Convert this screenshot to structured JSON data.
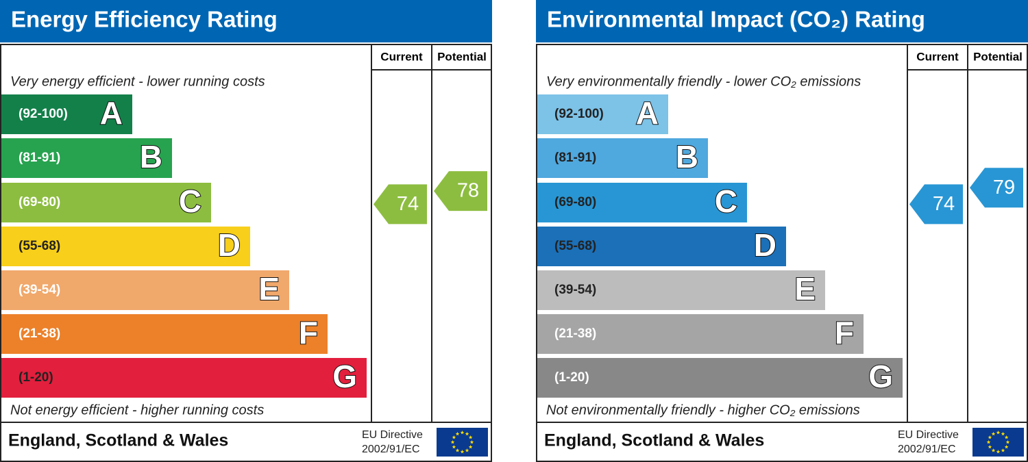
{
  "panels": [
    {
      "title": "Energy Efficiency Rating",
      "current_header": "Current",
      "potential_header": "Potential",
      "top_note": "Very energy efficient - lower running costs",
      "bottom_note": "Not energy efficient - higher running costs",
      "bands": [
        {
          "range": "(92-100)",
          "letter": "A",
          "color": "#13804a",
          "text_color": "#ffffff"
        },
        {
          "range": "(81-91)",
          "letter": "B",
          "color": "#27a34f",
          "text_color": "#ffffff"
        },
        {
          "range": "(69-80)",
          "letter": "C",
          "color": "#8dbd40",
          "text_color": "#ffffff"
        },
        {
          "range": "(55-68)",
          "letter": "D",
          "color": "#f8cf1a",
          "text_color": "#222222"
        },
        {
          "range": "(39-54)",
          "letter": "E",
          "color": "#f1a86b",
          "text_color": "#ffffff"
        },
        {
          "range": "(21-38)",
          "letter": "F",
          "color": "#ec812a",
          "text_color": "#ffffff"
        },
        {
          "range": "(1-20)",
          "letter": "G",
          "color": "#e21f3d",
          "text_color": "#222222"
        }
      ],
      "current": 74,
      "potential": 78,
      "footer": "England, Scotland & Wales",
      "directive": [
        "EU Directive",
        "2002/91/EC"
      ]
    },
    {
      "title": "Environmental Impact (CO₂) Rating",
      "current_header": "Current",
      "potential_header": "Potential",
      "top_note": "Very environmentally friendly - lower CO₂ emissions",
      "bottom_note": "Not environmentally friendly - higher CO₂ emissions",
      "bands": [
        {
          "range": "(92-100)",
          "letter": "A",
          "color": "#7dc2e7",
          "text_color": "#222222"
        },
        {
          "range": "(81-91)",
          "letter": "B",
          "color": "#4fa8de",
          "text_color": "#222222"
        },
        {
          "range": "(69-80)",
          "letter": "C",
          "color": "#2896d4",
          "text_color": "#222222"
        },
        {
          "range": "(55-68)",
          "letter": "D",
          "color": "#1b70b8",
          "text_color": "#222222"
        },
        {
          "range": "(39-54)",
          "letter": "E",
          "color": "#bcbcbc",
          "text_color": "#222222"
        },
        {
          "range": "(21-38)",
          "letter": "F",
          "color": "#a5a5a5",
          "text_color": "#ffffff"
        },
        {
          "range": "(1-20)",
          "letter": "G",
          "color": "#888888",
          "text_color": "#ffffff"
        }
      ],
      "current": 74,
      "potential": 79,
      "footer": "England, Scotland & Wales",
      "directive": [
        "EU Directive",
        "2002/91/EC"
      ]
    }
  ]
}
